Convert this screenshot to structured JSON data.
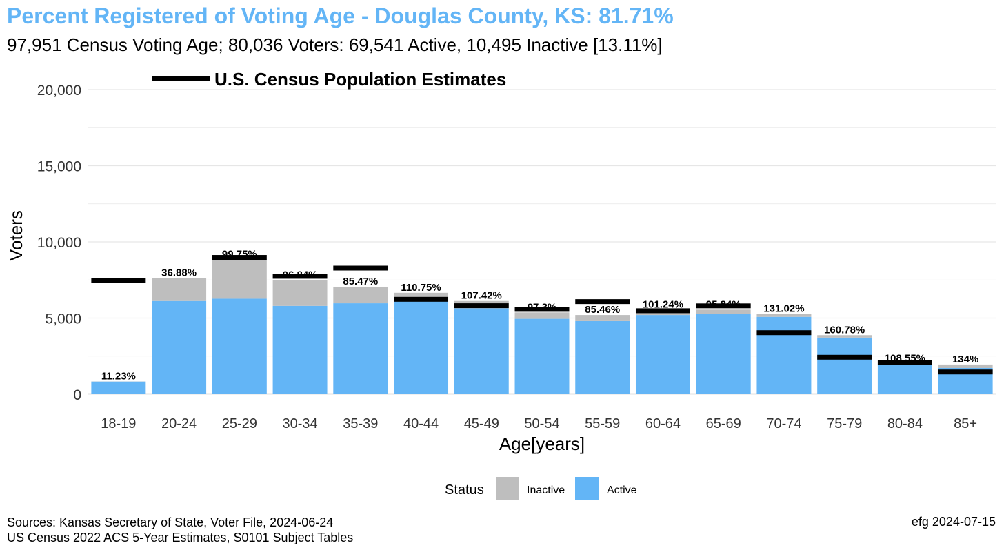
{
  "title": "Percent Registered of Voting Age - Douglas County, KS: 81.71%",
  "subtitle": "97,951 Census Voting Age; 80,036 Voters:  69,541 Active, 10,495 Inactive [13.11%]",
  "footer": {
    "sources_line1": "Sources: Kansas Secretary of State, Voter File, 2024-06-24",
    "sources_line2": "US Census 2022 ACS 5-Year Estimates, S0101 Subject Tables",
    "credit": "efg 2024-07-15"
  },
  "colors": {
    "title": "#63b5f6",
    "active": "#63b5f6",
    "inactive": "#bebebe",
    "census": "#000000",
    "grid": "#e6e6e6"
  },
  "chart_data": {
    "type": "bar",
    "stacked": true,
    "xlabel": "Age[years]",
    "ylabel": "Voters",
    "ylim": [
      0,
      20000
    ],
    "yticks": [
      0,
      5000,
      10000,
      15000,
      20000
    ],
    "ytick_labels": [
      "0",
      "5,000",
      "10,000",
      "15,000",
      "20,000"
    ],
    "categories": [
      "18-19",
      "20-24",
      "25-29",
      "30-34",
      "35-39",
      "40-44",
      "45-49",
      "50-54",
      "55-59",
      "60-64",
      "65-69",
      "70-74",
      "75-79",
      "80-84",
      "85+"
    ],
    "series": [
      {
        "name": "Active",
        "values": [
          830,
          6120,
          6270,
          5800,
          5970,
          6160,
          5640,
          4950,
          4800,
          5200,
          5250,
          5080,
          3720,
          1900,
          1720
        ]
      },
      {
        "name": "Inactive",
        "values": [
          10,
          1500,
          2580,
          1680,
          1090,
          500,
          480,
          420,
          400,
          340,
          300,
          200,
          160,
          120,
          230
        ]
      }
    ],
    "census_series": {
      "name": "U.S. Census Population Estimates",
      "values": [
        7470,
        20730,
        8980,
        7740,
        8280,
        6230,
        5810,
        5570,
        6080,
        5480,
        5800,
        4040,
        2430,
        2080,
        1460
      ]
    },
    "pct_labels": [
      "11.23%",
      "36.88%",
      "99.75%",
      "96.84%",
      "85.47%",
      "110.75%",
      "107.42%",
      "97.3%",
      "85.46%",
      "101.24%",
      "95.84%",
      "131.02%",
      "160.78%",
      "108.55%",
      "134%"
    ],
    "legend": {
      "title": "Status",
      "items": [
        "Inactive",
        "Active"
      ],
      "position": "bottom"
    }
  }
}
